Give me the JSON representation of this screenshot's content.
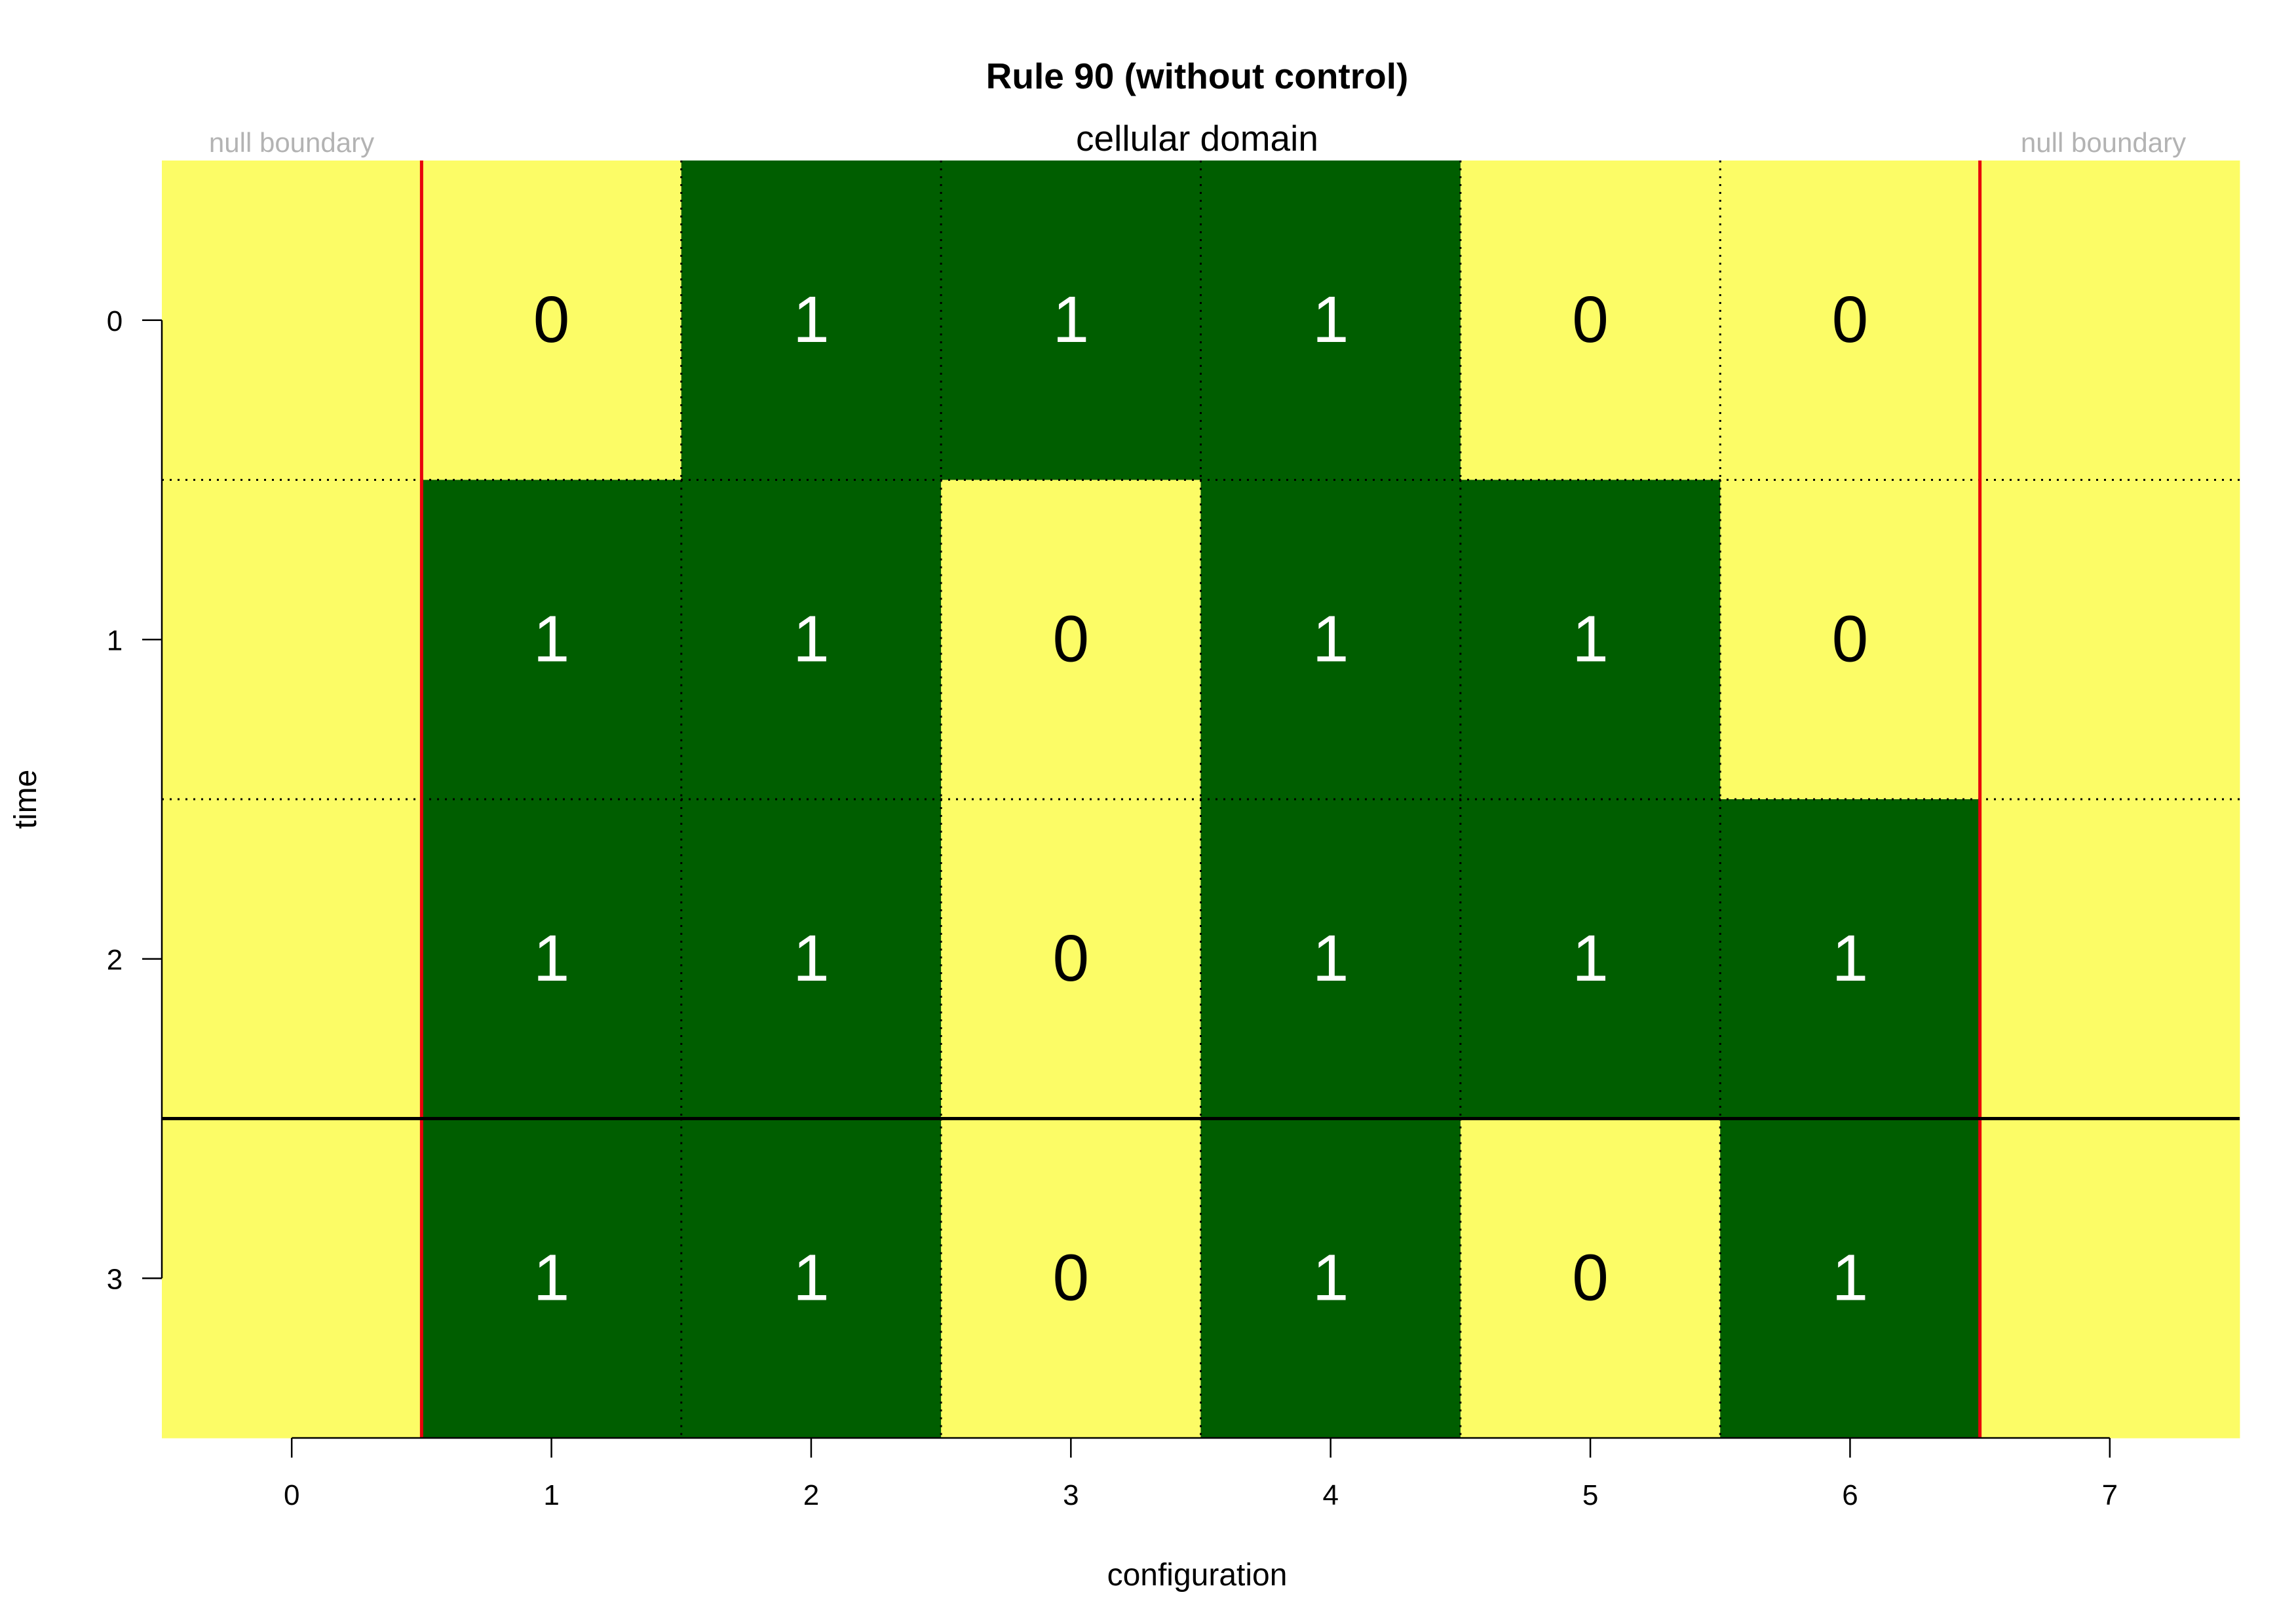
{
  "chart_data": {
    "type": "heatmap",
    "title": "Rule 90 (without control)",
    "subtitle": "cellular domain",
    "xlabel": "configuration",
    "ylabel": "time",
    "boundary_label_left": "null boundary",
    "boundary_label_right": "null boundary",
    "x_ticks": [
      "0",
      "1",
      "2",
      "3",
      "4",
      "5",
      "6",
      "7"
    ],
    "y_ticks": [
      "0",
      "1",
      "2",
      "3"
    ],
    "x_range": [
      -0.5,
      7.5
    ],
    "y_range": [
      -0.5,
      3.5
    ],
    "boundary_cells": [
      0,
      7
    ],
    "boundary_value": 0,
    "domain_x": [
      1,
      2,
      3,
      4,
      5,
      6
    ],
    "rows": [
      {
        "time": 0,
        "values": [
          0,
          1,
          1,
          1,
          0,
          0
        ]
      },
      {
        "time": 1,
        "values": [
          1,
          1,
          0,
          1,
          1,
          0
        ]
      },
      {
        "time": 2,
        "values": [
          1,
          1,
          0,
          1,
          1,
          1
        ]
      },
      {
        "time": 3,
        "values": [
          1,
          1,
          0,
          1,
          0,
          1
        ]
      }
    ],
    "separator_after_time": 2,
    "colors": {
      "zero": "#FCFC66",
      "one": "#005E00",
      "zero_text": "#000000",
      "one_text": "#ffffff",
      "boundary_line": "#E8000B",
      "separator_line": "#000000",
      "boundary_label": "#b3b3b3"
    }
  }
}
